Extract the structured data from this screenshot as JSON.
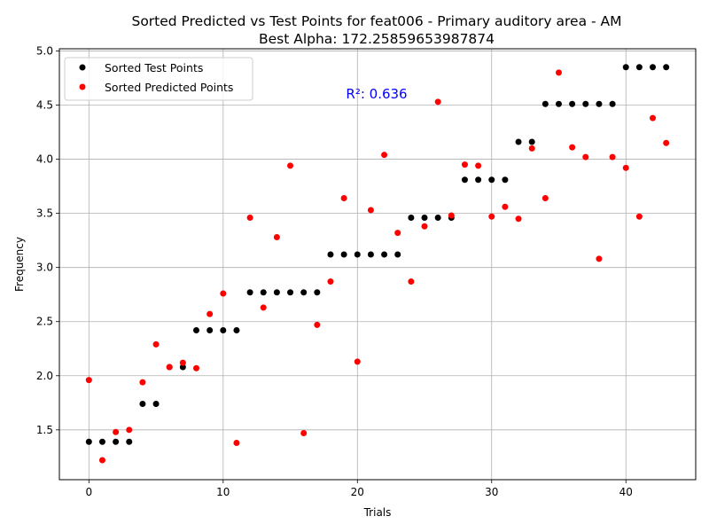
{
  "chart_data": {
    "type": "scatter",
    "title": "Sorted Predicted vs Test Points for feat006 - Primary auditory area - AM",
    "subtitle": "Best Alpha: 172.25859653987874",
    "xlabel": "Trials",
    "ylabel": "Frequency",
    "xlim": [
      -2.2,
      45.2
    ],
    "ylim": [
      1.04,
      5.02
    ],
    "xticks": [
      0,
      10,
      20,
      30,
      40
    ],
    "yticks": [
      1.5,
      2.0,
      2.5,
      3.0,
      3.5,
      4.0,
      4.5,
      5.0
    ],
    "ytick_labels": [
      "1.5",
      "2.0",
      "2.5",
      "3.0",
      "3.5",
      "4.0",
      "4.5",
      "5.0"
    ],
    "grid": true,
    "legend_position": "top-left",
    "annotation": {
      "text": "R²: 0.636",
      "x": 21.5,
      "y": 4.6,
      "color": "#0000ff"
    },
    "series": [
      {
        "name": "Sorted Test Points",
        "color": "#000000",
        "x": [
          0,
          1,
          2,
          3,
          4,
          5,
          6,
          7,
          8,
          9,
          10,
          11,
          12,
          13,
          14,
          15,
          16,
          17,
          18,
          19,
          20,
          21,
          22,
          23,
          24,
          25,
          26,
          27,
          28,
          29,
          30,
          31,
          32,
          33,
          34,
          35,
          36,
          37,
          38,
          39,
          40,
          41,
          42,
          43
        ],
        "y": [
          1.39,
          1.39,
          1.39,
          1.39,
          1.74,
          1.74,
          2.08,
          2.08,
          2.42,
          2.42,
          2.42,
          2.42,
          2.77,
          2.77,
          2.77,
          2.77,
          2.77,
          2.77,
          3.12,
          3.12,
          3.12,
          3.12,
          3.12,
          3.12,
          3.46,
          3.46,
          3.46,
          3.46,
          3.81,
          3.81,
          3.81,
          3.81,
          4.16,
          4.16,
          4.51,
          4.51,
          4.51,
          4.51,
          4.51,
          4.51,
          4.85,
          4.85,
          4.85,
          4.85
        ]
      },
      {
        "name": "Sorted Predicted Points",
        "color": "#ff0000",
        "x": [
          0,
          1,
          2,
          3,
          4,
          5,
          6,
          7,
          8,
          9,
          10,
          11,
          12,
          13,
          14,
          15,
          16,
          17,
          18,
          19,
          20,
          21,
          22,
          23,
          24,
          25,
          26,
          27,
          28,
          29,
          30,
          31,
          32,
          33,
          34,
          35,
          36,
          37,
          38,
          39,
          40,
          41,
          42,
          43
        ],
        "y": [
          1.96,
          1.22,
          1.48,
          1.5,
          1.94,
          2.29,
          2.08,
          2.12,
          2.07,
          2.57,
          2.76,
          1.38,
          3.46,
          2.63,
          3.28,
          3.94,
          1.47,
          2.47,
          2.87,
          3.64,
          2.13,
          3.53,
          4.04,
          3.32,
          2.87,
          3.38,
          4.53,
          3.48,
          3.95,
          3.94,
          3.47,
          3.56,
          3.45,
          4.1,
          3.64,
          4.8,
          4.11,
          4.02,
          3.08,
          4.02,
          3.92,
          3.47,
          4.38,
          4.15
        ]
      }
    ]
  }
}
